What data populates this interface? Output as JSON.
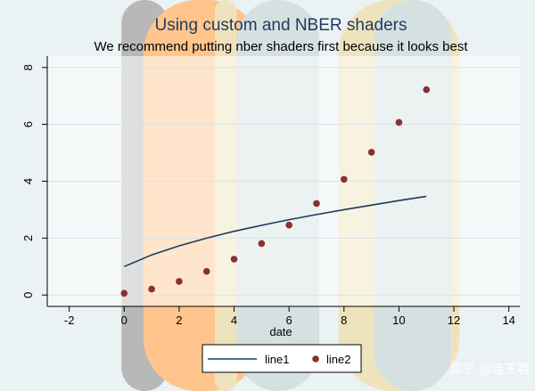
{
  "chart_data": {
    "type": "line",
    "title": "Using custom and NBER shaders",
    "subtitle": "We recommend putting nber shaders first because it looks best",
    "xlabel": "date",
    "ylabel": "",
    "xlim": [
      -2.8,
      14.4
    ],
    "ylim": [
      -0.4,
      8.4
    ],
    "x_ticks": [
      -2,
      0,
      2,
      4,
      6,
      8,
      10,
      12,
      14
    ],
    "y_ticks": [
      0,
      2,
      4,
      6,
      8
    ],
    "grid": true,
    "legend_position": "bottom",
    "series": [
      {
        "name": "line1",
        "kind": "line",
        "color": "#1a3a5c",
        "x": [
          0,
          1,
          2,
          3,
          4,
          5,
          6,
          7,
          8,
          9,
          10,
          11
        ],
        "y": [
          1.0,
          1.41,
          1.73,
          2.0,
          2.24,
          2.45,
          2.65,
          2.83,
          3.0,
          3.16,
          3.32,
          3.47
        ]
      },
      {
        "name": "line2",
        "kind": "scatter",
        "color": "#8b2f2f",
        "x": [
          0,
          1,
          2,
          3,
          4,
          5,
          6,
          7,
          8,
          9,
          10,
          11
        ],
        "y": [
          0.06,
          0.21,
          0.48,
          0.83,
          1.26,
          1.81,
          2.46,
          3.22,
          4.07,
          5.02,
          6.07,
          7.22
        ]
      }
    ],
    "shaders": [
      {
        "color": "#b8b8b8",
        "x_start": -0.1,
        "x_end": 1.6
      },
      {
        "color": "#ffc58d",
        "x_start": 0.7,
        "x_end": 5.0
      },
      {
        "color": "#efe3bd",
        "x_start": 3.3,
        "x_end": 4.1
      },
      {
        "color": "#efe3bd",
        "x_start": 7.8,
        "x_end": 12.2
      },
      {
        "color": "#d5e0e0",
        "x_start": 4.1,
        "x_end": 7.1
      },
      {
        "color": "#d5e0e0",
        "x_start": 9.1,
        "x_end": 11.9
      }
    ]
  },
  "watermark": "知乎 @连玉君"
}
